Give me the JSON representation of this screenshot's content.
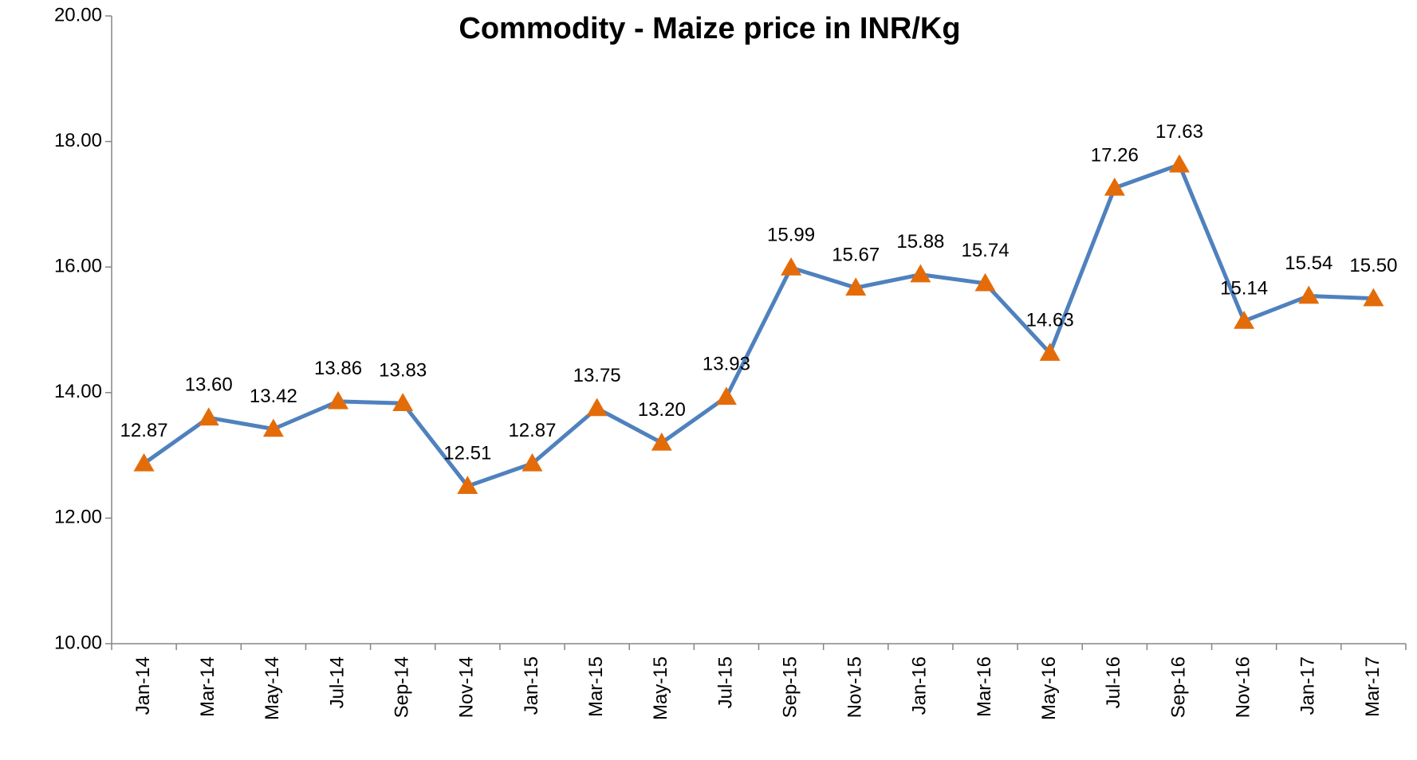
{
  "chart_data": {
    "type": "line",
    "title": "Commodity - Maize price  in INR/Kg",
    "categories": [
      "Jan-14",
      "Mar-14",
      "May-14",
      "Jul-14",
      "Sep-14",
      "Nov-14",
      "Jan-15",
      "Mar-15",
      "May-15",
      "Jul-15",
      "Sep-15",
      "Nov-15",
      "Jan-16",
      "Mar-16",
      "May-16",
      "Jul-16",
      "Sep-16",
      "Nov-16",
      "Jan-17",
      "Mar-17"
    ],
    "series": [
      {
        "color": "#4f81bd",
        "marker_color": "#e36c09",
        "values": [
          12.87,
          13.6,
          13.42,
          13.86,
          13.83,
          12.51,
          12.87,
          13.75,
          13.2,
          13.93,
          15.99,
          15.67,
          15.88,
          15.74,
          14.63,
          17.26,
          17.63,
          15.14,
          15.54,
          15.5
        ],
        "value_labels": [
          "12.87",
          "13.60",
          "13.42",
          "13.86",
          "13.83",
          "12.51",
          "12.87",
          "13.75",
          "13.20",
          "13.93",
          "15.99",
          "15.67",
          "15.88",
          "15.74",
          "14.63",
          "17.26",
          "17.63",
          "15.14",
          "15.54",
          "15.50"
        ]
      }
    ],
    "ylim": [
      10,
      20
    ],
    "yticks": [
      {
        "value": 10,
        "label": "10.00"
      },
      {
        "value": 12,
        "label": "12.00"
      },
      {
        "value": 14,
        "label": "14.00"
      },
      {
        "value": 16,
        "label": "16.00"
      },
      {
        "value": 18,
        "label": "18.00"
      },
      {
        "value": 20,
        "label": "20.00"
      }
    ],
    "grid": false
  }
}
